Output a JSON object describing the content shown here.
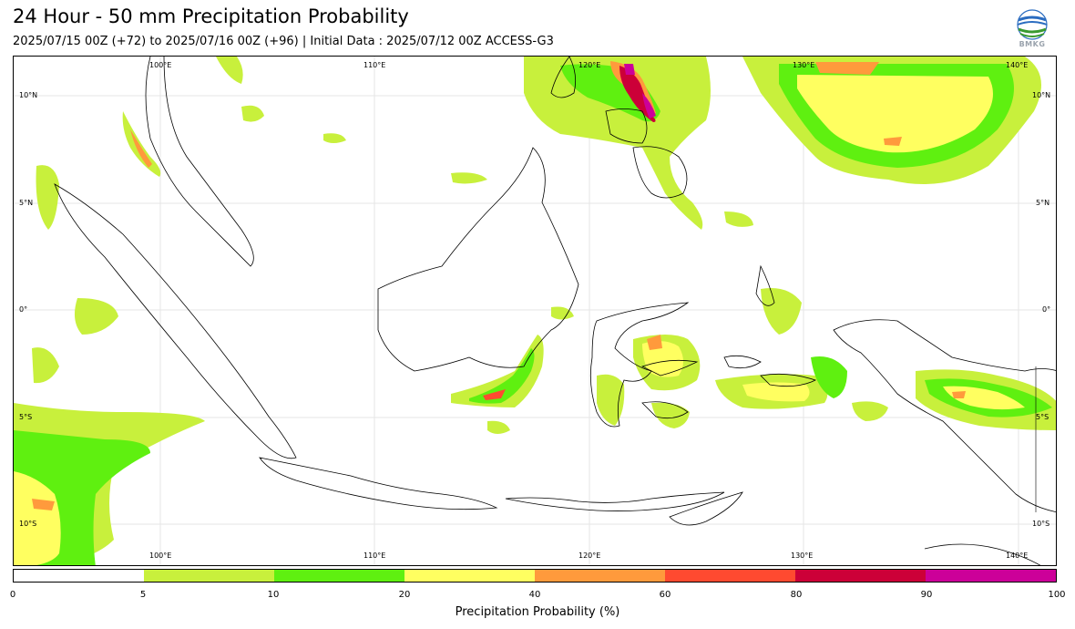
{
  "header": {
    "title": "24 Hour - 50 mm Precipitation Probability",
    "subtitle": "2025/07/15 00Z (+72) to 2025/07/16 00Z (+96) | Initial Data : 2025/07/12 00Z ACCESS-G3",
    "logo_text": "BMKG"
  },
  "map": {
    "longitude_labels": [
      "100°E",
      "110°E",
      "120°E",
      "130°E",
      "140°E"
    ],
    "latitude_labels": [
      "10°N",
      "5°N",
      "0°",
      "5°S",
      "10°S"
    ]
  },
  "colorbar": {
    "title": "Precipitation Probability (%)",
    "ticks": [
      "0",
      "5",
      "10",
      "20",
      "40",
      "60",
      "80",
      "90",
      "100"
    ],
    "colors": [
      "#ffffff",
      "#c8f03c",
      "#5ff010",
      "#ffff60",
      "#ff9a3c",
      "#ff4a30",
      "#cc0038",
      "#cc0099"
    ]
  }
}
